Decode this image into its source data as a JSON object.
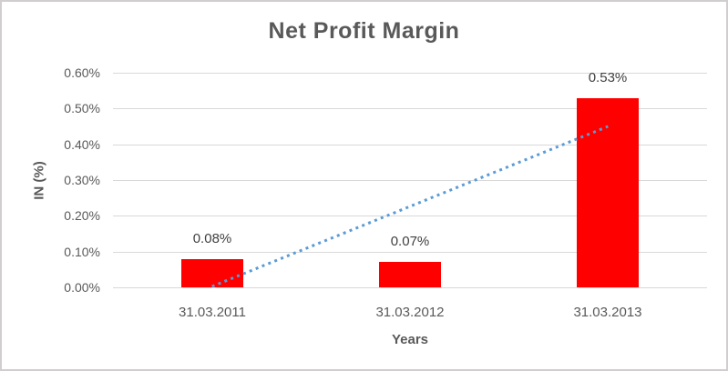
{
  "chart_data": {
    "type": "bar",
    "title": "Net Profit Margin",
    "xlabel": "Years",
    "ylabel": "IN (%)",
    "categories": [
      "31.03.2011",
      "31.03.2012",
      "31.03.2013"
    ],
    "series": [
      {
        "name": "Net Profit Margin",
        "values": [
          0.08,
          0.07,
          0.53
        ]
      }
    ],
    "data_labels": [
      "0.08%",
      "0.07%",
      "0.53%"
    ],
    "y_ticks": [
      0.0,
      0.1,
      0.2,
      0.3,
      0.4,
      0.5,
      0.6
    ],
    "y_tick_labels": [
      "0.00%",
      "0.10%",
      "0.20%",
      "0.30%",
      "0.40%",
      "0.50%",
      "0.60%"
    ],
    "ylim": [
      0,
      0.6
    ],
    "grid": true,
    "legend": "none",
    "bar_color": "#ff0000",
    "trendline": {
      "type": "linear",
      "style": "dotted",
      "color": "#5b9bd5",
      "start_value": 0.0,
      "end_value": 0.45
    }
  },
  "colors": {
    "gridline": "#d9d9d9",
    "axis_text": "#595959",
    "title_text": "#595959",
    "data_label_text": "#404040",
    "frame_border": "#d0cece",
    "background": "#ffffff"
  }
}
